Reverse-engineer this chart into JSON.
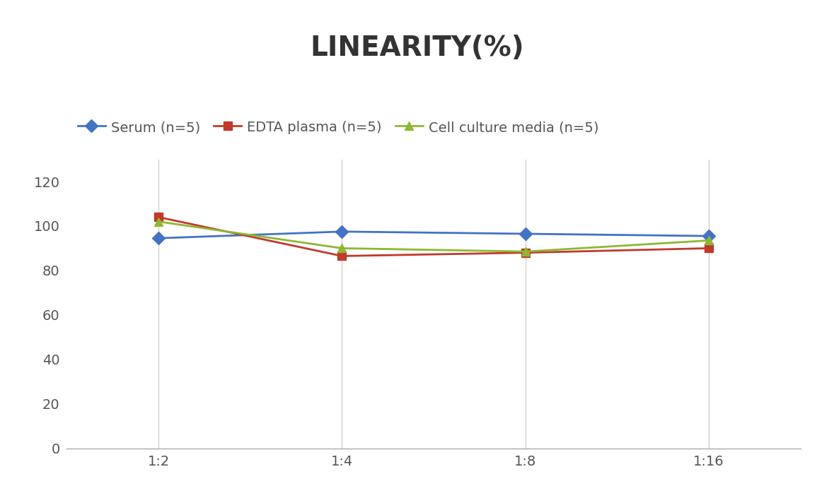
{
  "title": "LINEARITY(%)",
  "x_labels": [
    "1:2",
    "1:4",
    "1:8",
    "1:16"
  ],
  "series": [
    {
      "label": "Serum (n=5)",
      "color": "#4472C4",
      "marker": "D",
      "values": [
        94.5,
        97.5,
        96.5,
        95.5
      ]
    },
    {
      "label": "EDTA plasma (n=5)",
      "color": "#C0392B",
      "marker": "s",
      "values": [
        104.0,
        86.5,
        88.0,
        90.0
      ]
    },
    {
      "label": "Cell culture media (n=5)",
      "color": "#8DB832",
      "marker": "^",
      "values": [
        102.0,
        90.0,
        88.5,
        93.5
      ]
    }
  ],
  "ylim": [
    0,
    130
  ],
  "yticks": [
    0,
    20,
    40,
    60,
    80,
    100,
    120
  ],
  "background_color": "#ffffff",
  "title_fontsize": 28,
  "legend_fontsize": 14,
  "tick_fontsize": 14,
  "grid_color": "#d0d0d0",
  "line_width": 2.0,
  "marker_size": 9
}
